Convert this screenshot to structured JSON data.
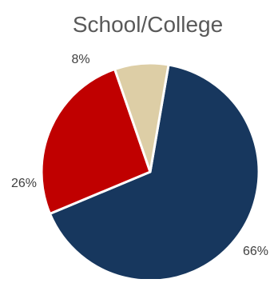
{
  "chart_data": {
    "type": "pie",
    "title": "School/College",
    "categories": [
      "",
      "",
      ""
    ],
    "values": [
      66,
      26,
      8
    ],
    "data_labels": [
      "66%",
      "26%",
      "8%"
    ],
    "colors": [
      "#17375E",
      "#C00000",
      "#DDCEA6"
    ],
    "slice_border_color": "#FFFFFF",
    "legend": "none"
  }
}
